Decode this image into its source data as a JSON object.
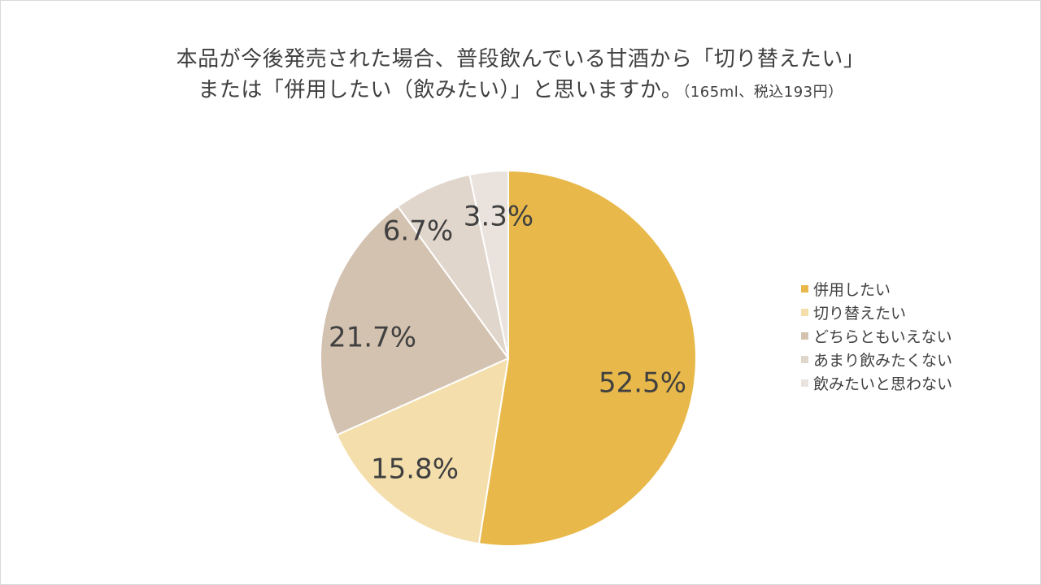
{
  "title_line1": "本品が今後発売された場合、普段飲んでいる甘酒から「切り替えたい」",
  "title_line2_main": "または「併用したい（飲みたい）」と思いますか。",
  "title_line2_note": "（165ml、税込193円）",
  "chart_data": {
    "type": "pie",
    "title": "本品が今後発売された場合、普段飲んでいる甘酒から「切り替えたい」または「併用したい（飲みたい）」と思いますか。（165ml、税込193円）",
    "categories": [
      "併用したい",
      "切り替えたい",
      "どちらともいえない",
      "あまり飲みたくない",
      "飲みたいと思わない"
    ],
    "values": [
      52.5,
      15.8,
      21.7,
      6.7,
      3.3
    ],
    "labels": [
      "52.5%",
      "15.8%",
      "21.7%",
      "6.7%",
      "3.3%"
    ],
    "colors": [
      "#E8B94A",
      "#F4DFAC",
      "#D3C2B0",
      "#E1D6CC",
      "#EAE3DD"
    ],
    "start": "12 o'clock",
    "direction": "clockwise",
    "legend_position": "right"
  }
}
